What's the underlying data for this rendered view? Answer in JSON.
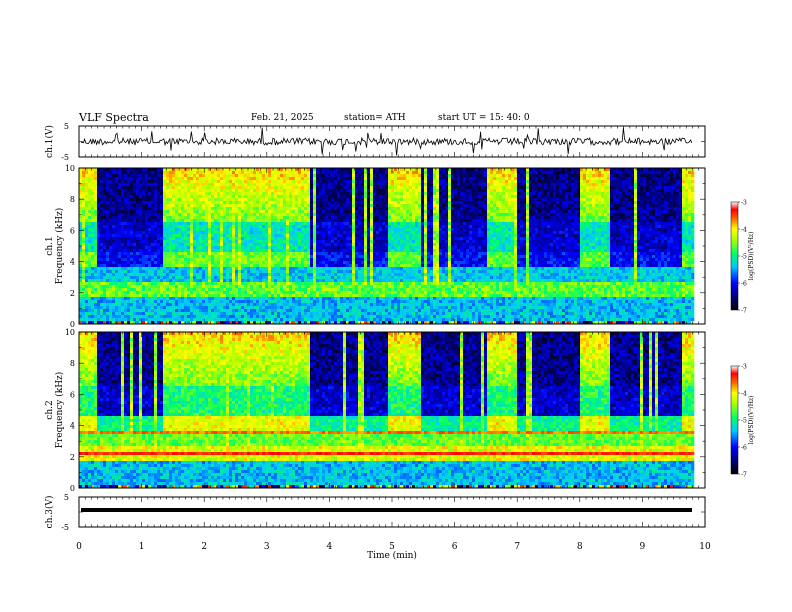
{
  "header": {
    "title": "VLF  Spectra",
    "date": "Feb. 21, 2025",
    "station": "station= ATH",
    "start": "start  UT  =    15: 40: 0"
  },
  "chart_data": [
    {
      "type": "line",
      "name_label": "ch.1(V)",
      "ylabel": "ch.1(V)",
      "ylim": [
        -5,
        5
      ],
      "y_ticks": [
        "5",
        "-5"
      ],
      "xlim": [
        0,
        10
      ],
      "note": "noisy waveform oscillating near 0 V from 0 to ~9.8 min"
    },
    {
      "type": "heatmap",
      "ylabel_top": "ch.1",
      "ylabel": "Frequency  (kHz)",
      "ylim": [
        0,
        10
      ],
      "y_ticks": [
        "0",
        "2",
        "4",
        "6",
        "8",
        "10"
      ],
      "xlim": [
        0,
        10
      ],
      "colorbar": {
        "label": "log(PSD)(V²/Hz)",
        "range": [
          -7,
          -3
        ],
        "ticks": [
          "-3",
          "-4",
          "-5",
          "-6",
          "-7"
        ]
      },
      "quiet_intervals_min": [
        [
          0.28,
          1.3
        ],
        [
          3.65,
          4.9
        ],
        [
          5.42,
          6.5
        ],
        [
          6.95,
          8.0
        ],
        [
          8.45,
          9.6
        ]
      ]
    },
    {
      "type": "heatmap",
      "ylabel_top": "ch.2",
      "ylabel": "Frequency  (kHz)",
      "ylim": [
        0,
        10
      ],
      "y_ticks": [
        "0",
        "2",
        "4",
        "6",
        "8",
        "10"
      ],
      "xlim": [
        0,
        10
      ],
      "colorbar": {
        "label": "log(PSD)(V²/Hz)",
        "range": [
          -7,
          -3
        ],
        "ticks": [
          "-3",
          "-4",
          "-5",
          "-6",
          "-7"
        ]
      },
      "quiet_intervals_min": [
        [
          0.28,
          1.3
        ],
        [
          3.65,
          4.9
        ],
        [
          5.42,
          6.5
        ],
        [
          6.95,
          8.0
        ],
        [
          8.45,
          9.6
        ]
      ]
    },
    {
      "type": "line",
      "ylabel": "ch.3(V)",
      "ylim": [
        -5,
        5
      ],
      "y_ticks": [
        "5",
        "-5"
      ],
      "xlim": [
        0,
        10
      ],
      "note": "flat thick trace near -1.5 V from 0 to ~9.8 min"
    }
  ],
  "xaxis": {
    "label": "Time  (min)",
    "ticks": [
      "0",
      "1",
      "2",
      "3",
      "4",
      "5",
      "6",
      "7",
      "8",
      "9",
      "10"
    ]
  }
}
